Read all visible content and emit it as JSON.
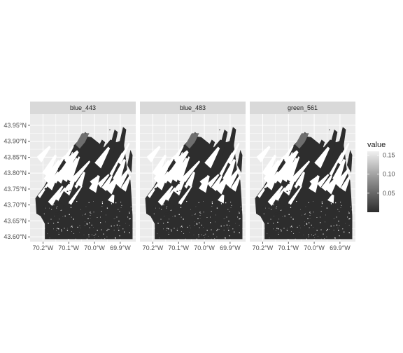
{
  "chart_data": {
    "type": "heatmap",
    "facets": [
      "blue_443",
      "blue_483",
      "green_561"
    ],
    "x_ticks": [
      "70.2°W",
      "70.1°W",
      "70.0°W",
      "69.9°W"
    ],
    "x_tick_values": [
      -70.2,
      -70.1,
      -70.0,
      -69.9
    ],
    "xlim": [
      -70.25,
      -69.84
    ],
    "y_ticks": [
      "43.95°N",
      "43.90°N",
      "43.85°N",
      "43.80°N",
      "43.75°N",
      "43.70°N",
      "43.65°N",
      "43.60°N"
    ],
    "y_tick_values": [
      43.95,
      43.9,
      43.85,
      43.8,
      43.75,
      43.7,
      43.65,
      43.6
    ],
    "ylim": [
      43.585,
      43.985
    ],
    "grid": true,
    "legend": {
      "title": "value",
      "position": "right",
      "range": [
        0.0,
        0.16
      ],
      "breaks": [
        0.15,
        0.1,
        0.05
      ],
      "break_labels": [
        "0.15",
        "0.10",
        "0.05"
      ],
      "low_color": "#2d2d2d",
      "high_color": "#f0f0f0"
    },
    "colors": {
      "panel_background": "#ebebeb",
      "grid_line": "#ffffff",
      "strip_background": "#d9d9d9",
      "water_dark": "#2d2d2d",
      "bright_patch": "#6e6e6e"
    }
  }
}
